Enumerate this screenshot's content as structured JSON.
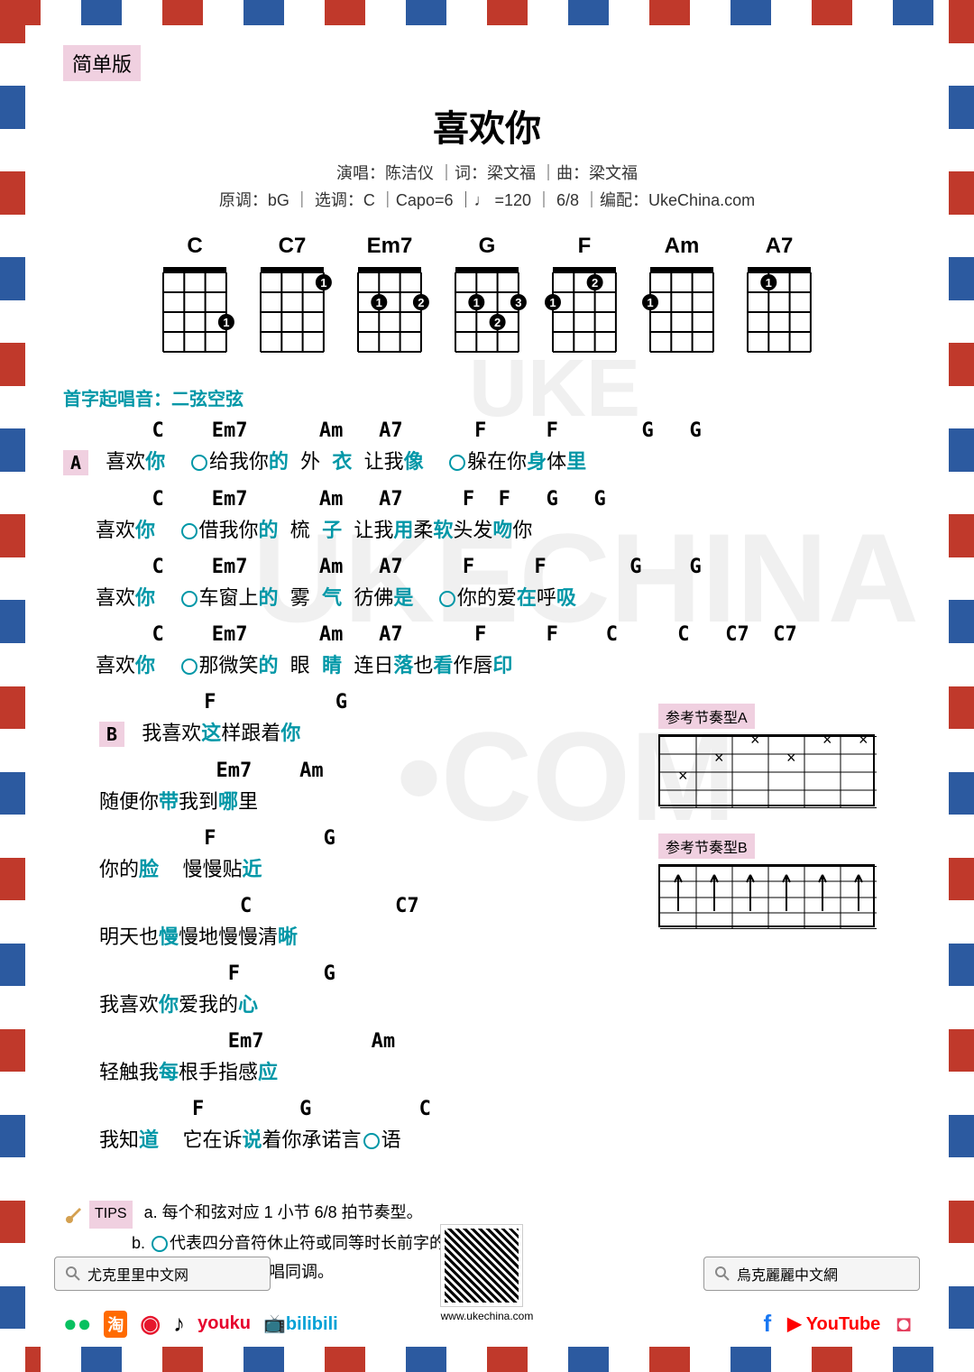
{
  "badge": "简单版",
  "title": "喜欢你",
  "meta1_singer_label": "演唱：",
  "meta1_singer": "陈洁仪",
  "meta1_lyric_label": "词：",
  "meta1_lyric": "梁文福",
  "meta1_music_label": "曲：",
  "meta1_music": "梁文福",
  "meta2": "原调：bG ｜ 选调：C ｜Capo=6 ｜♩ =120 ｜ 6/8 ｜编配：UkeChina.com",
  "chords": [
    "C",
    "C7",
    "Em7",
    "G",
    "F",
    "Am",
    "A7"
  ],
  "chord_fingerings": {
    "C": [
      [
        0,
        0,
        0,
        3
      ]
    ],
    "C7": [
      [
        0,
        0,
        0,
        1
      ]
    ],
    "Em7": [
      [
        0,
        2,
        0,
        2
      ]
    ],
    "G": [
      [
        0,
        2,
        3,
        2
      ]
    ],
    "F": [
      [
        2,
        0,
        1,
        0
      ]
    ],
    "Am": [
      [
        2,
        0,
        0,
        0
      ]
    ],
    "A7": [
      [
        0,
        1,
        0,
        0
      ]
    ]
  },
  "start_note": "首字起唱音：二弦空弦",
  "sectionA": {
    "label": "A",
    "lines": [
      {
        "chords": "  C    Em7      Am   A7      F     F       G   G",
        "lyrics_segments": [
          "喜欢",
          "你",
          "  ",
          "○",
          "给我你",
          "的",
          " 外 ",
          "衣",
          " 让我",
          "像",
          "  ",
          "○",
          "躲在你",
          "身",
          "体",
          "里"
        ]
      },
      {
        "chords": "  C    Em7      Am   A7     F  F   G   G",
        "lyrics_segments": [
          "喜欢",
          "你",
          "  ",
          "○",
          "借我你",
          "的",
          " 梳 ",
          "子",
          " 让我",
          "用",
          "柔",
          "软",
          "头发",
          "吻",
          "你"
        ]
      },
      {
        "chords": "  C    Em7      Am   A7     F     F       G    G",
        "lyrics_segments": [
          "喜欢",
          "你",
          "  ",
          "○",
          "车窗上",
          "的",
          " 雾 ",
          "气",
          " 彷佛",
          "是",
          "  ",
          "○",
          "你的爱",
          "在",
          "呼",
          "吸"
        ]
      },
      {
        "chords": "  C    Em7      Am   A7      F     F    C     C   C7  C7",
        "lyrics_segments": [
          "喜欢",
          "你",
          "  ",
          "○",
          "那微笑",
          "的",
          " 眼 ",
          "睛",
          " 连日",
          "落",
          "也",
          "看",
          "作唇",
          "印"
        ]
      }
    ]
  },
  "sectionB": {
    "label": "B",
    "lines": [
      {
        "chords": "     F          G",
        "lyrics": "我喜欢|这|样跟着|你|"
      },
      {
        "chords": "      Em7    Am",
        "lyrics": "随便你|带|我到|哪|里"
      },
      {
        "chords": "     F         G",
        "lyrics": "你的|脸|  慢慢贴|近|"
      },
      {
        "chords": "        C            C7",
        "lyrics": "明天也|慢|慢地慢慢清|晰|"
      },
      {
        "chords": "       F       G",
        "lyrics": "我喜欢|你|爱我的|心|"
      },
      {
        "chords": "       Em7         Am",
        "lyrics": "轻触我|每|根手指感|应|"
      },
      {
        "chords": "    F        G         C",
        "lyrics": "我知|道|  它在诉|说|着你承诺言|○|语"
      }
    ]
  },
  "strum_a_label": "参考节奏型A",
  "strum_b_label": "参考节奏型B",
  "tips_label": "TIPS",
  "tips": [
    "a. 每个和弦对应 1 小节 6/8 拍节奏型。",
    "b. ○代表四分音符休止符或同等时长前字的延音。",
    "G. 变调夹 6 品和原唱同调。"
  ],
  "search_left": "尤克里里中文网",
  "search_right": "烏克麗麗中文網",
  "website": "www.ukechina.com",
  "colors": {
    "highlight": "#0097a7",
    "badge_bg": "#f0d0e0",
    "border_red": "#c0392b",
    "border_blue": "#2c5aa0"
  }
}
